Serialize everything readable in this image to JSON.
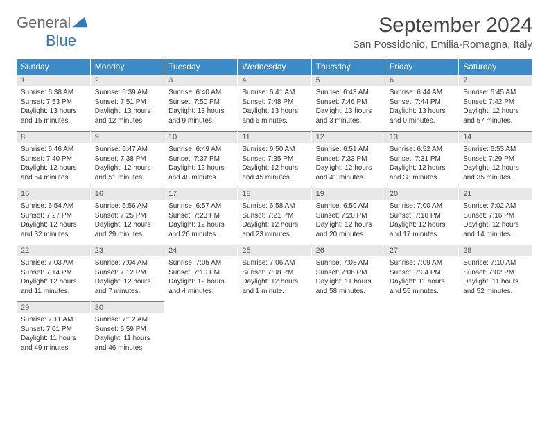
{
  "logo": {
    "text1": "General",
    "text2": "Blue"
  },
  "title": "September 2024",
  "location": "San Possidonio, Emilia-Romagna, Italy",
  "colors": {
    "header_bg": "#3b8bc9",
    "header_text": "#ffffff",
    "daynum_bg": "#e8e8e8",
    "border": "#3b8bc9",
    "logo_gray": "#6b6b6b",
    "logo_blue": "#2f7bbf"
  },
  "weekdays": [
    "Sunday",
    "Monday",
    "Tuesday",
    "Wednesday",
    "Thursday",
    "Friday",
    "Saturday"
  ],
  "weeks": [
    [
      {
        "n": "1",
        "sr": "6:38 AM",
        "ss": "7:53 PM",
        "dl": "13 hours and 15 minutes."
      },
      {
        "n": "2",
        "sr": "6:39 AM",
        "ss": "7:51 PM",
        "dl": "13 hours and 12 minutes."
      },
      {
        "n": "3",
        "sr": "6:40 AM",
        "ss": "7:50 PM",
        "dl": "13 hours and 9 minutes."
      },
      {
        "n": "4",
        "sr": "6:41 AM",
        "ss": "7:48 PM",
        "dl": "13 hours and 6 minutes."
      },
      {
        "n": "5",
        "sr": "6:43 AM",
        "ss": "7:46 PM",
        "dl": "13 hours and 3 minutes."
      },
      {
        "n": "6",
        "sr": "6:44 AM",
        "ss": "7:44 PM",
        "dl": "13 hours and 0 minutes."
      },
      {
        "n": "7",
        "sr": "6:45 AM",
        "ss": "7:42 PM",
        "dl": "12 hours and 57 minutes."
      }
    ],
    [
      {
        "n": "8",
        "sr": "6:46 AM",
        "ss": "7:40 PM",
        "dl": "12 hours and 54 minutes."
      },
      {
        "n": "9",
        "sr": "6:47 AM",
        "ss": "7:38 PM",
        "dl": "12 hours and 51 minutes."
      },
      {
        "n": "10",
        "sr": "6:49 AM",
        "ss": "7:37 PM",
        "dl": "12 hours and 48 minutes."
      },
      {
        "n": "11",
        "sr": "6:50 AM",
        "ss": "7:35 PM",
        "dl": "12 hours and 45 minutes."
      },
      {
        "n": "12",
        "sr": "6:51 AM",
        "ss": "7:33 PM",
        "dl": "12 hours and 41 minutes."
      },
      {
        "n": "13",
        "sr": "6:52 AM",
        "ss": "7:31 PM",
        "dl": "12 hours and 38 minutes."
      },
      {
        "n": "14",
        "sr": "6:53 AM",
        "ss": "7:29 PM",
        "dl": "12 hours and 35 minutes."
      }
    ],
    [
      {
        "n": "15",
        "sr": "6:54 AM",
        "ss": "7:27 PM",
        "dl": "12 hours and 32 minutes."
      },
      {
        "n": "16",
        "sr": "6:56 AM",
        "ss": "7:25 PM",
        "dl": "12 hours and 29 minutes."
      },
      {
        "n": "17",
        "sr": "6:57 AM",
        "ss": "7:23 PM",
        "dl": "12 hours and 26 minutes."
      },
      {
        "n": "18",
        "sr": "6:58 AM",
        "ss": "7:21 PM",
        "dl": "12 hours and 23 minutes."
      },
      {
        "n": "19",
        "sr": "6:59 AM",
        "ss": "7:20 PM",
        "dl": "12 hours and 20 minutes."
      },
      {
        "n": "20",
        "sr": "7:00 AM",
        "ss": "7:18 PM",
        "dl": "12 hours and 17 minutes."
      },
      {
        "n": "21",
        "sr": "7:02 AM",
        "ss": "7:16 PM",
        "dl": "12 hours and 14 minutes."
      }
    ],
    [
      {
        "n": "22",
        "sr": "7:03 AM",
        "ss": "7:14 PM",
        "dl": "12 hours and 11 minutes."
      },
      {
        "n": "23",
        "sr": "7:04 AM",
        "ss": "7:12 PM",
        "dl": "12 hours and 7 minutes."
      },
      {
        "n": "24",
        "sr": "7:05 AM",
        "ss": "7:10 PM",
        "dl": "12 hours and 4 minutes."
      },
      {
        "n": "25",
        "sr": "7:06 AM",
        "ss": "7:08 PM",
        "dl": "12 hours and 1 minute."
      },
      {
        "n": "26",
        "sr": "7:08 AM",
        "ss": "7:06 PM",
        "dl": "11 hours and 58 minutes."
      },
      {
        "n": "27",
        "sr": "7:09 AM",
        "ss": "7:04 PM",
        "dl": "11 hours and 55 minutes."
      },
      {
        "n": "28",
        "sr": "7:10 AM",
        "ss": "7:02 PM",
        "dl": "11 hours and 52 minutes."
      }
    ],
    [
      {
        "n": "29",
        "sr": "7:11 AM",
        "ss": "7:01 PM",
        "dl": "11 hours and 49 minutes."
      },
      {
        "n": "30",
        "sr": "7:12 AM",
        "ss": "6:59 PM",
        "dl": "11 hours and 46 minutes."
      },
      null,
      null,
      null,
      null,
      null
    ]
  ]
}
